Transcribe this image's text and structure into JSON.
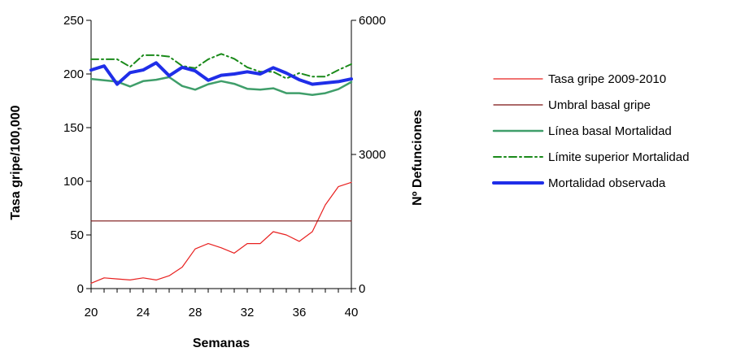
{
  "chart_data": {
    "type": "line",
    "title": "",
    "xlabel": "Semanas",
    "ylabel_left": "Tasa gripe/100,000",
    "ylabel_right": "Nº Defunciones",
    "xlim": [
      20,
      40
    ],
    "ylim_left": [
      0,
      250
    ],
    "ylim_right": [
      0,
      6000
    ],
    "x_ticks": [
      20,
      24,
      28,
      32,
      36,
      40
    ],
    "y_left_ticks": [
      0,
      50,
      100,
      150,
      200,
      250
    ],
    "y_right_ticks": [
      0,
      3000,
      6000
    ],
    "grid": false,
    "legend_position": "right",
    "x": [
      20,
      21,
      22,
      23,
      24,
      25,
      26,
      27,
      28,
      29,
      30,
      31,
      32,
      33,
      34,
      35,
      36,
      37,
      38,
      39,
      40
    ],
    "series": [
      {
        "name": "Tasa gripe 2009-2010",
        "axis": "left",
        "color": "#e8201f",
        "style": "solid",
        "width": 1.2,
        "values": [
          5,
          10,
          9,
          8,
          10,
          8,
          12,
          20,
          37,
          42,
          38,
          33,
          42,
          42,
          53,
          50,
          44,
          53,
          78,
          95,
          99
        ]
      },
      {
        "name": "Umbral basal gripe",
        "axis": "left",
        "color": "#7a1212",
        "style": "solid",
        "width": 1.2,
        "values": [
          63,
          63,
          63,
          63,
          63,
          63,
          63,
          63,
          63,
          63,
          63,
          63,
          63,
          63,
          63,
          63,
          63,
          63,
          63,
          63,
          63
        ]
      },
      {
        "name": "Línea basal Mortalidad",
        "axis": "right",
        "color": "#3f9e6a",
        "style": "solid",
        "width": 2.5,
        "values": [
          4690,
          4660,
          4630,
          4520,
          4640,
          4670,
          4730,
          4530,
          4450,
          4570,
          4640,
          4580,
          4470,
          4450,
          4480,
          4370,
          4370,
          4330,
          4370,
          4460,
          4620
        ]
      },
      {
        "name": "Límite superior Mortalidad",
        "axis": "right",
        "color": "#1a8a1a",
        "style": "dashdot",
        "width": 2,
        "values": [
          5130,
          5130,
          5130,
          4960,
          5220,
          5220,
          5190,
          4980,
          4930,
          5130,
          5250,
          5140,
          4950,
          4850,
          4850,
          4700,
          4820,
          4740,
          4740,
          4890,
          5020
        ]
      },
      {
        "name": "Mortalidad observada",
        "axis": "right",
        "color": "#1f2ee8",
        "style": "solid",
        "width": 4,
        "values": [
          4890,
          4980,
          4570,
          4830,
          4890,
          5050,
          4760,
          4950,
          4870,
          4660,
          4770,
          4800,
          4850,
          4800,
          4940,
          4820,
          4670,
          4570,
          4600,
          4630,
          4690
        ]
      }
    ]
  }
}
